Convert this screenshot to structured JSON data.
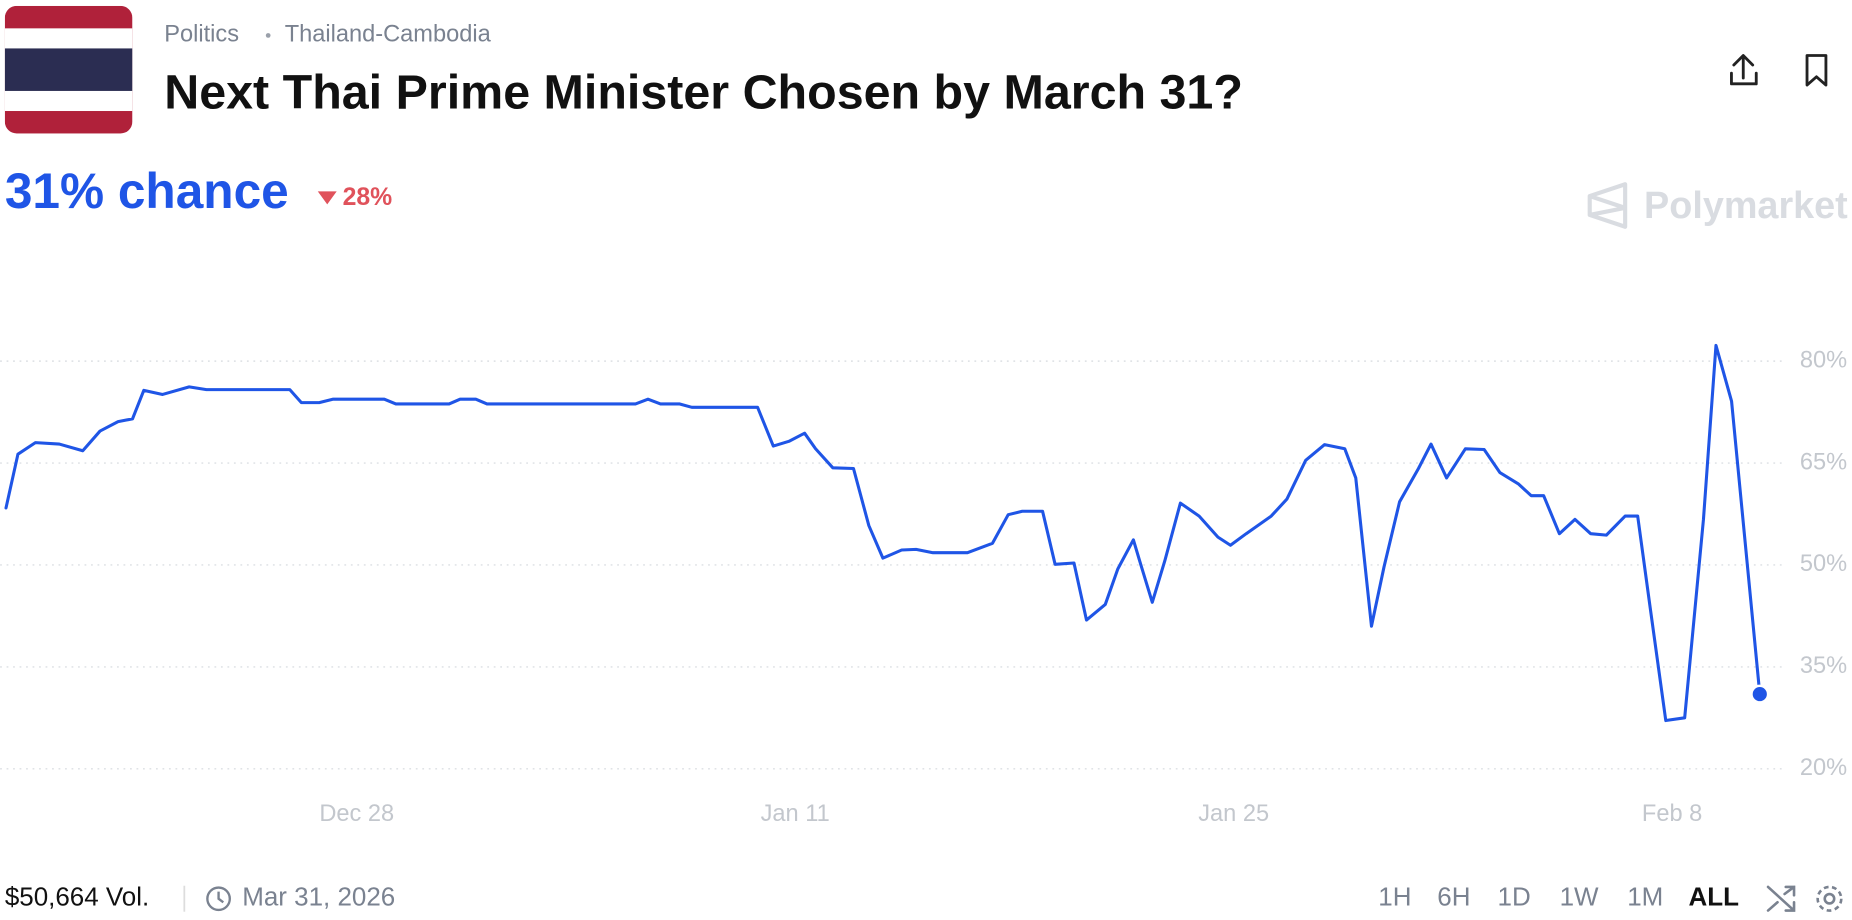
{
  "header": {
    "breadcrumb": [
      "Politics",
      "Thailand-Cambodia"
    ],
    "title": "Next Thai Prime Minister Chosen by March 31?",
    "chance": "31% chance",
    "change": "28%",
    "brand": "Polymarket"
  },
  "chart_data": {
    "type": "line",
    "color": "#1f55e6",
    "x": [
      0,
      0.38,
      0.94,
      1.7,
      2.45,
      3.0,
      3.58,
      4.04,
      4.4,
      5.0,
      5.85,
      6.4,
      9.06,
      9.43,
      10.0,
      10.45,
      12.08,
      12.45,
      14.15,
      14.5,
      15.0,
      15.36,
      20.1,
      20.5,
      20.9,
      21.5,
      21.9,
      24.0,
      24.5,
      25.0,
      25.5,
      25.85,
      26.4,
      27.06,
      27.55,
      28.0,
      28.6,
      29.06,
      29.6,
      30.7,
      31.5,
      32.0,
      32.45,
      33.1,
      33.5,
      34.1,
      34.5,
      35.1,
      35.5,
      36.0,
      36.2,
      36.6,
      37.0,
      37.5,
      38.1,
      38.7,
      39.1,
      39.6,
      40.4,
      40.9,
      41.5,
      42.1,
      42.75,
      43.1,
      43.6,
      44.0,
      44.5,
      45.1,
      45.5,
      46.0,
      46.6,
      47.2,
      47.7,
      48.3,
      48.7,
      49.1,
      49.6,
      50.1,
      50.6,
      51.1,
      51.7,
      52.1,
      52.5,
      53.0,
      53.6,
      54.2,
      54.6,
      55.1,
      56.0
    ],
    "series": [
      {
        "values": [
          58.4,
          66.3,
          68,
          67.8,
          66.8,
          69.7,
          71.1,
          71.5,
          75.7,
          75.1,
          76.2,
          75.8,
          75.8,
          73.9,
          73.9,
          74.4,
          74.4,
          73.7,
          73.7,
          74.4,
          74.4,
          73.7,
          73.7,
          74.4,
          73.7,
          73.7,
          73.2,
          73.2,
          67.5,
          68.2,
          69.4,
          67.1,
          64.3,
          64.2,
          55.8,
          51.0,
          52.2,
          52.3,
          51.8,
          51.8,
          53.2,
          57.4,
          57.9,
          57.9,
          50.1,
          50.3,
          41.9,
          44.2,
          49.4,
          53.7,
          50.6,
          44.5,
          50.6,
          59.1,
          57.2,
          54.1,
          52.9,
          54.6,
          57.2,
          59.7,
          65.4,
          67.7,
          67.1,
          62.8,
          41.0,
          49.7,
          59.3,
          64.2,
          67.8,
          62.8,
          67.1,
          67.0,
          63.6,
          61.9,
          60.2,
          60.2,
          54.6,
          56.7,
          54.6,
          54.4,
          57.2,
          57.2,
          43.7,
          27.1,
          27.5,
          56.7,
          82.3,
          74.1,
          31
        ]
      }
    ],
    "xlim": [
      0,
      56
    ],
    "ylim": [
      20,
      85
    ],
    "xticks": [
      {
        "value": 11.2,
        "label": "Dec 28"
      },
      {
        "value": 25.2,
        "label": "Jan 11"
      },
      {
        "value": 39.2,
        "label": "Jan 25"
      },
      {
        "value": 53.2,
        "label": "Feb 8"
      }
    ],
    "yticks": [
      {
        "value": 20,
        "label": "20%"
      },
      {
        "value": 35,
        "label": "35%"
      },
      {
        "value": 50,
        "label": "50%"
      },
      {
        "value": 65,
        "label": "65%"
      },
      {
        "value": 80,
        "label": "80%"
      }
    ],
    "grid": true
  },
  "footer": {
    "volume": "$50,664 Vol.",
    "end_date": "Mar 31, 2026",
    "ranges": [
      "1H",
      "6H",
      "1D",
      "1W",
      "1M",
      "ALL"
    ],
    "active_range": "ALL"
  }
}
